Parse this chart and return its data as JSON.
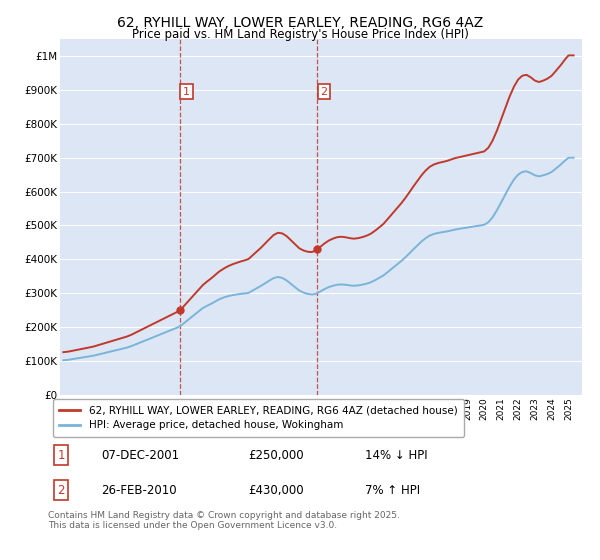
{
  "title": "62, RYHILL WAY, LOWER EARLEY, READING, RG6 4AZ",
  "subtitle": "Price paid vs. HM Land Registry's House Price Index (HPI)",
  "title_fontsize": 10,
  "subtitle_fontsize": 8.5,
  "background_color": "#ffffff",
  "plot_bg_color": "#dce6f5",
  "grid_color": "#ffffff",
  "sale1_price": 250000,
  "sale2_price": 430000,
  "hpi_line_color": "#7ab4d8",
  "price_line_color": "#c0392b",
  "vline_color": "#c0392b",
  "marker_box_color": "#c0392b",
  "ylabel_ticks": [
    "£0",
    "£100K",
    "£200K",
    "£300K",
    "£400K",
    "£500K",
    "£600K",
    "£700K",
    "£800K",
    "£900K",
    "£1M"
  ],
  "ytick_values": [
    0,
    100000,
    200000,
    300000,
    400000,
    500000,
    600000,
    700000,
    800000,
    900000,
    1000000
  ],
  "ylim": [
    0,
    1050000
  ],
  "xlim_start": 1994.8,
  "xlim_end": 2025.8,
  "legend_label_red": "62, RYHILL WAY, LOWER EARLEY, READING, RG6 4AZ (detached house)",
  "legend_label_blue": "HPI: Average price, detached house, Wokingham",
  "footer_text": "Contains HM Land Registry data © Crown copyright and database right 2025.\nThis data is licensed under the Open Government Licence v3.0.",
  "table_row1": [
    "1",
    "07-DEC-2001",
    "£250,000",
    "14% ↓ HPI"
  ],
  "table_row2": [
    "2",
    "26-FEB-2010",
    "£430,000",
    "7% ↑ HPI"
  ],
  "hpi_years": [
    1995,
    1995.25,
    1995.5,
    1995.75,
    1996,
    1996.25,
    1996.5,
    1996.75,
    1997,
    1997.25,
    1997.5,
    1997.75,
    1998,
    1998.25,
    1998.5,
    1998.75,
    1999,
    1999.25,
    1999.5,
    1999.75,
    2000,
    2000.25,
    2000.5,
    2000.75,
    2001,
    2001.25,
    2001.5,
    2001.75,
    2002,
    2002.25,
    2002.5,
    2002.75,
    2003,
    2003.25,
    2003.5,
    2003.75,
    2004,
    2004.25,
    2004.5,
    2004.75,
    2005,
    2005.25,
    2005.5,
    2005.75,
    2006,
    2006.25,
    2006.5,
    2006.75,
    2007,
    2007.25,
    2007.5,
    2007.75,
    2008,
    2008.25,
    2008.5,
    2008.75,
    2009,
    2009.25,
    2009.5,
    2009.75,
    2010,
    2010.25,
    2010.5,
    2010.75,
    2011,
    2011.25,
    2011.5,
    2011.75,
    2012,
    2012.25,
    2012.5,
    2012.75,
    2013,
    2013.25,
    2013.5,
    2013.75,
    2014,
    2014.25,
    2014.5,
    2014.75,
    2015,
    2015.25,
    2015.5,
    2015.75,
    2016,
    2016.25,
    2016.5,
    2016.75,
    2017,
    2017.25,
    2017.5,
    2017.75,
    2018,
    2018.25,
    2018.5,
    2018.75,
    2019,
    2019.25,
    2019.5,
    2019.75,
    2020,
    2020.25,
    2020.5,
    2020.75,
    2021,
    2021.25,
    2021.5,
    2021.75,
    2022,
    2022.25,
    2022.5,
    2022.75,
    2023,
    2023.25,
    2023.5,
    2023.75,
    2024,
    2024.25,
    2024.5,
    2024.75,
    2025
  ],
  "hpi_values": [
    102000,
    103000,
    105000,
    107000,
    109000,
    111000,
    113000,
    115000,
    118000,
    121000,
    124000,
    127000,
    130000,
    133000,
    136000,
    139000,
    143000,
    148000,
    153000,
    158000,
    163000,
    168000,
    173000,
    178000,
    183000,
    188000,
    193000,
    198000,
    205000,
    215000,
    225000,
    235000,
    245000,
    255000,
    262000,
    268000,
    275000,
    282000,
    287000,
    291000,
    294000,
    296000,
    298000,
    299000,
    301000,
    308000,
    315000,
    322000,
    330000,
    338000,
    345000,
    348000,
    345000,
    338000,
    328000,
    318000,
    308000,
    302000,
    298000,
    296000,
    298000,
    305000,
    312000,
    318000,
    322000,
    325000,
    326000,
    325000,
    323000,
    322000,
    323000,
    325000,
    328000,
    332000,
    338000,
    345000,
    352000,
    362000,
    372000,
    382000,
    392000,
    403000,
    415000,
    428000,
    440000,
    452000,
    462000,
    470000,
    475000,
    478000,
    480000,
    482000,
    485000,
    488000,
    490000,
    492000,
    494000,
    496000,
    498000,
    500000,
    502000,
    510000,
    525000,
    545000,
    568000,
    592000,
    615000,
    635000,
    650000,
    658000,
    660000,
    655000,
    648000,
    645000,
    648000,
    652000,
    658000,
    668000,
    678000,
    690000,
    700000
  ]
}
